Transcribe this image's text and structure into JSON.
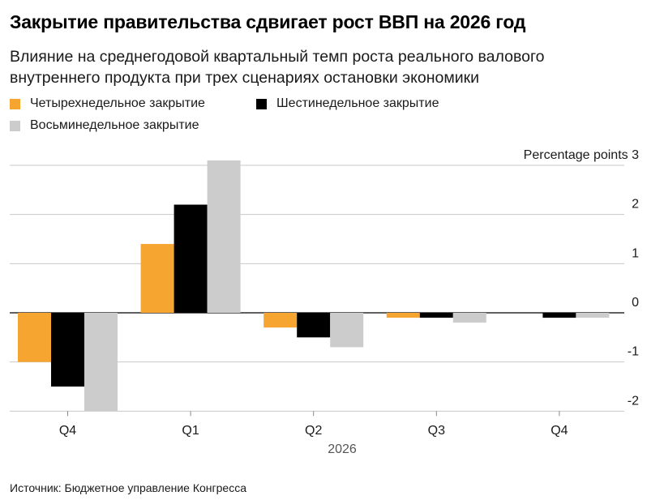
{
  "title": "Закрытие правительства сдвигает рост ВВП на 2026 год",
  "subtitle": "Влияние на среднегодовой квартальный темп роста реального валового внутреннего продукта при трех сценариях остановки экономики",
  "source": "Источник: Бюджетное управление Конгресса",
  "chart_data": {
    "type": "bar",
    "categories": [
      "Q4",
      "Q1",
      "Q2",
      "Q3",
      "Q4"
    ],
    "year_label": "2026",
    "ylabel": "Percentage points",
    "ylim": [
      -2,
      3
    ],
    "yticks": [
      3,
      2,
      1,
      0,
      -1,
      -2
    ],
    "grid": true,
    "legend_position": "top-left",
    "series": [
      {
        "name": "Четырехнедельное закрытие",
        "color": "#f7a531",
        "values": [
          -1.0,
          1.4,
          -0.3,
          -0.1,
          0.0
        ]
      },
      {
        "name": "Шестинедельное закрытие",
        "color": "#000000",
        "values": [
          -1.5,
          2.2,
          -0.5,
          -0.1,
          -0.1
        ]
      },
      {
        "name": "Восьминедельное закрытие",
        "color": "#cccccc",
        "values": [
          -2.0,
          3.1,
          -0.7,
          -0.2,
          -0.1
        ]
      }
    ]
  }
}
